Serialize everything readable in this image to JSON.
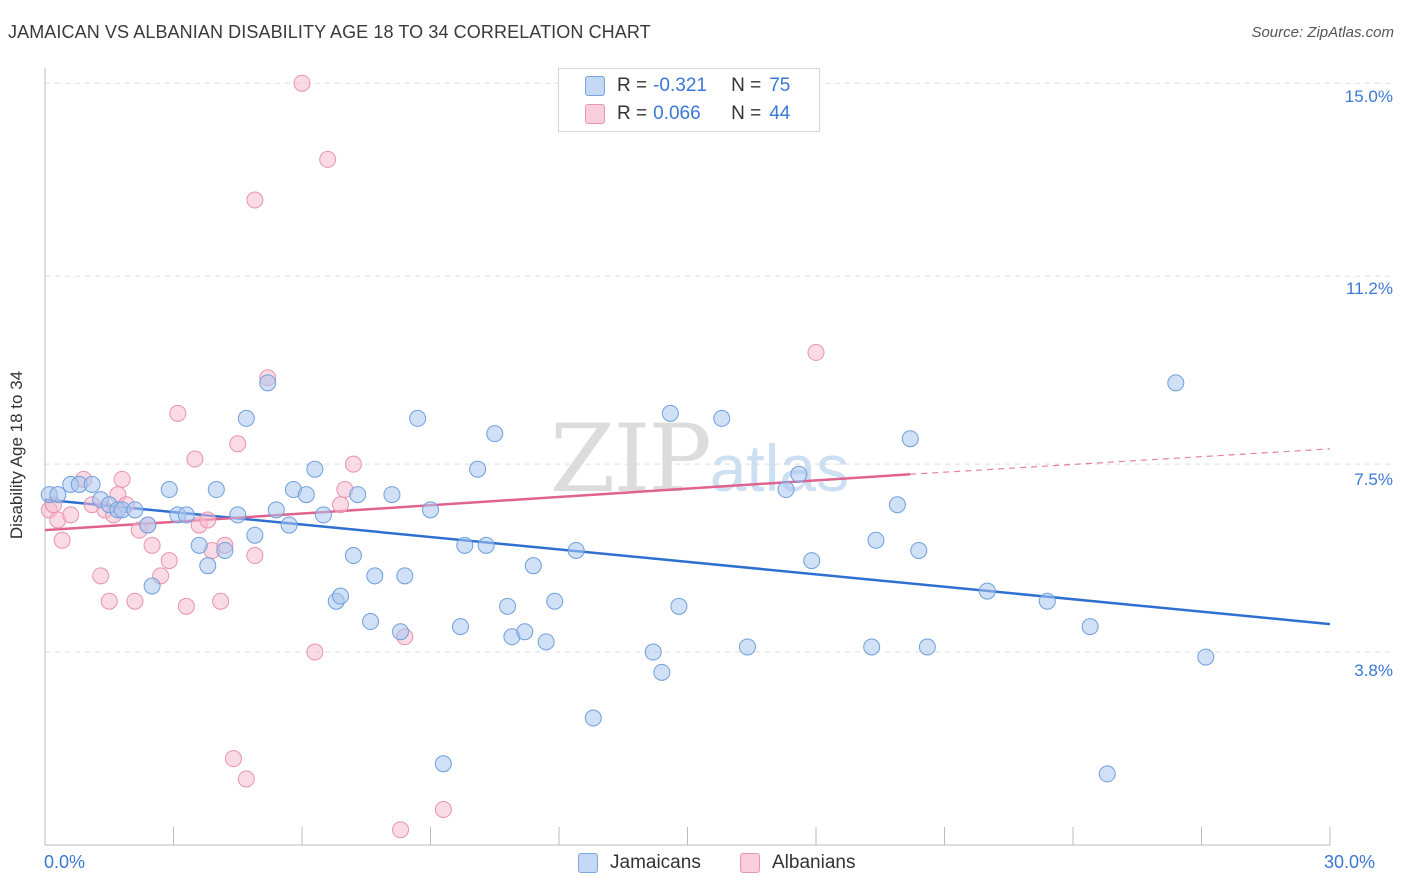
{
  "title": "JAMAICAN VS ALBANIAN DISABILITY AGE 18 TO 34 CORRELATION CHART",
  "source": "Source: ZipAtlas.com",
  "watermark": {
    "zip": "ZIP",
    "atlas": "atlas"
  },
  "legend_box": [
    {
      "r_label": "R =",
      "r_value": "-0.321",
      "n_label": "N =",
      "n_value": "75"
    },
    {
      "r_label": "R =",
      "r_value": "0.066",
      "n_label": "N =",
      "n_value": "44"
    }
  ],
  "bottom_legend": [
    "Jamaicans",
    "Albanians"
  ],
  "x_tick_labels": {
    "min": "0.0%",
    "max": "30.0%"
  },
  "y_tick_labels": [
    "15.0%",
    "11.2%",
    "7.5%",
    "3.8%"
  ],
  "colors": {
    "jamaican_fill": "#a9c7ee",
    "jamaican_stroke": "#6f9fdc",
    "jamaican_line": "#2f6fcf",
    "albanian_fill": "#f6bccd",
    "albanian_stroke": "#e893ad",
    "albanian_line": "#e0628e",
    "axis_text": "#3a78d6",
    "grid": "#dddddd"
  },
  "chart_data": {
    "type": "scatter",
    "title": "JAMAICAN VS ALBANIAN DISABILITY AGE 18 TO 34 CORRELATION CHART",
    "ylabel": "Disability Age 18 to 34",
    "xlabel": "",
    "xlim": [
      0,
      30
    ],
    "ylim": [
      0,
      15.3
    ],
    "y_ticks": [
      3.8,
      7.5,
      11.2,
      15.0
    ],
    "grid": true,
    "legend_position": "top-center",
    "series": [
      {
        "name": "Jamaicans",
        "r": -0.321,
        "n": 75,
        "trend": {
          "x": [
            0,
            30
          ],
          "y": [
            6.8,
            4.35
          ]
        },
        "points": [
          [
            0.1,
            6.9
          ],
          [
            0.3,
            6.9
          ],
          [
            0.6,
            7.1
          ],
          [
            0.8,
            7.1
          ],
          [
            1.1,
            7.1
          ],
          [
            1.3,
            6.8
          ],
          [
            1.5,
            6.7
          ],
          [
            1.7,
            6.6
          ],
          [
            1.8,
            6.6
          ],
          [
            2.1,
            6.6
          ],
          [
            2.4,
            6.3
          ],
          [
            2.5,
            5.1
          ],
          [
            2.9,
            7.0
          ],
          [
            3.1,
            6.5
          ],
          [
            3.3,
            6.5
          ],
          [
            3.6,
            5.9
          ],
          [
            3.8,
            5.5
          ],
          [
            4.0,
            7.0
          ],
          [
            4.2,
            5.8
          ],
          [
            4.5,
            6.5
          ],
          [
            4.7,
            8.4
          ],
          [
            4.9,
            6.1
          ],
          [
            5.2,
            9.1
          ],
          [
            5.4,
            6.6
          ],
          [
            5.7,
            6.3
          ],
          [
            5.8,
            7.0
          ],
          [
            6.1,
            6.9
          ],
          [
            6.3,
            7.4
          ],
          [
            6.5,
            6.5
          ],
          [
            6.8,
            4.8
          ],
          [
            6.9,
            4.9
          ],
          [
            7.2,
            5.7
          ],
          [
            7.3,
            6.9
          ],
          [
            7.6,
            4.4
          ],
          [
            7.7,
            5.3
          ],
          [
            8.1,
            6.9
          ],
          [
            8.3,
            4.2
          ],
          [
            8.4,
            5.3
          ],
          [
            8.7,
            8.4
          ],
          [
            9.0,
            6.6
          ],
          [
            9.3,
            1.6
          ],
          [
            9.7,
            4.3
          ],
          [
            9.8,
            5.9
          ],
          [
            10.1,
            7.4
          ],
          [
            10.3,
            5.9
          ],
          [
            10.5,
            8.1
          ],
          [
            10.8,
            4.7
          ],
          [
            10.9,
            4.1
          ],
          [
            11.2,
            4.2
          ],
          [
            11.4,
            5.5
          ],
          [
            11.7,
            4.0
          ],
          [
            11.9,
            4.8
          ],
          [
            12.4,
            5.8
          ],
          [
            12.8,
            2.5
          ],
          [
            14.2,
            3.8
          ],
          [
            14.4,
            3.4
          ],
          [
            14.6,
            8.5
          ],
          [
            14.8,
            4.7
          ],
          [
            15.8,
            8.4
          ],
          [
            16.4,
            3.9
          ],
          [
            17.3,
            7.0
          ],
          [
            17.6,
            7.3
          ],
          [
            17.9,
            5.6
          ],
          [
            19.3,
            3.9
          ],
          [
            19.4,
            6.0
          ],
          [
            19.9,
            6.7
          ],
          [
            20.2,
            8.0
          ],
          [
            20.4,
            5.8
          ],
          [
            20.6,
            3.9
          ],
          [
            22.0,
            5.0
          ],
          [
            23.4,
            4.8
          ],
          [
            24.4,
            4.3
          ],
          [
            24.8,
            1.4
          ],
          [
            26.4,
            9.1
          ],
          [
            27.1,
            3.7
          ]
        ]
      },
      {
        "name": "Albanians",
        "r": 0.066,
        "n": 44,
        "trend": {
          "x": [
            0,
            20.2
          ],
          "y": [
            6.2,
            7.3
          ]
        },
        "trend_dashed": {
          "x": [
            20.2,
            30
          ],
          "y": [
            7.3,
            7.8
          ]
        },
        "points": [
          [
            0.1,
            6.6
          ],
          [
            0.2,
            6.7
          ],
          [
            0.3,
            6.4
          ],
          [
            0.4,
            6.0
          ],
          [
            0.6,
            6.5
          ],
          [
            0.9,
            7.2
          ],
          [
            1.1,
            6.7
          ],
          [
            1.3,
            5.3
          ],
          [
            1.4,
            6.6
          ],
          [
            1.5,
            4.8
          ],
          [
            1.6,
            6.5
          ],
          [
            1.7,
            6.9
          ],
          [
            1.8,
            7.2
          ],
          [
            1.9,
            6.7
          ],
          [
            2.1,
            4.8
          ],
          [
            2.2,
            6.2
          ],
          [
            2.4,
            6.3
          ],
          [
            2.5,
            5.9
          ],
          [
            2.7,
            5.3
          ],
          [
            2.9,
            5.6
          ],
          [
            3.1,
            8.5
          ],
          [
            3.3,
            4.7
          ],
          [
            3.5,
            7.6
          ],
          [
            3.6,
            6.3
          ],
          [
            3.8,
            6.4
          ],
          [
            3.9,
            5.8
          ],
          [
            4.1,
            4.8
          ],
          [
            4.2,
            5.9
          ],
          [
            4.4,
            1.7
          ],
          [
            4.5,
            7.9
          ],
          [
            4.7,
            1.3
          ],
          [
            4.9,
            5.7
          ],
          [
            5.2,
            9.2
          ],
          [
            6.0,
            15.0
          ],
          [
            6.3,
            3.8
          ],
          [
            6.6,
            13.5
          ],
          [
            6.9,
            6.7
          ],
          [
            7.0,
            7.0
          ],
          [
            7.2,
            7.5
          ],
          [
            8.4,
            4.1
          ],
          [
            8.3,
            0.3
          ],
          [
            9.3,
            0.7
          ],
          [
            4.9,
            12.7
          ],
          [
            18.0,
            9.7
          ]
        ]
      }
    ]
  }
}
